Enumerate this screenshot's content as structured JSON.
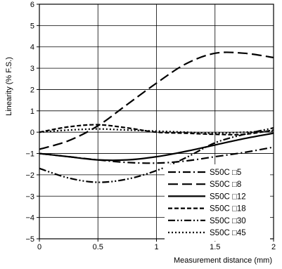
{
  "chart_data": {
    "type": "line",
    "xlabel": "Measurement distance (mm)",
    "ylabel": "Linearity (% F.S.)",
    "xlim": [
      0,
      2
    ],
    "ylim": [
      -5,
      6
    ],
    "x_ticks": [
      "0",
      "0.5",
      "1",
      "1.5",
      "2"
    ],
    "y_ticks": [
      "6",
      "5",
      "4",
      "3",
      "2",
      "1",
      "0",
      "−1",
      "−2",
      "−3",
      "−4",
      "−5"
    ],
    "grid": true,
    "legend_position": "bottom-right",
    "series": [
      {
        "name": "S50C □5",
        "dash": "dash-dot",
        "x": [
          0,
          0.25,
          0.5,
          0.75,
          1.0,
          1.25,
          1.5,
          1.75,
          2.0
        ],
        "y": [
          -1.0,
          -1.15,
          -1.3,
          -1.42,
          -1.45,
          -1.35,
          -1.15,
          -0.95,
          -0.7
        ]
      },
      {
        "name": "S50C □8",
        "dash": "long-dash",
        "x": [
          0,
          0.25,
          0.5,
          0.75,
          1.0,
          1.25,
          1.5,
          1.75,
          2.0
        ],
        "y": [
          -0.8,
          -0.4,
          0.3,
          1.3,
          2.3,
          3.2,
          3.7,
          3.7,
          3.5
        ]
      },
      {
        "name": "S50C □12",
        "dash": "solid",
        "x": [
          0,
          0.25,
          0.5,
          0.75,
          1.0,
          1.25,
          1.5,
          1.75,
          2.0
        ],
        "y": [
          -1.0,
          -1.15,
          -1.3,
          -1.3,
          -1.15,
          -0.9,
          -0.6,
          -0.3,
          -0.05
        ]
      },
      {
        "name": "S50C □18",
        "dash": "short-dash",
        "x": [
          0,
          0.25,
          0.5,
          0.75,
          1.0,
          1.25,
          1.5,
          1.75,
          2.0
        ],
        "y": [
          0.0,
          0.25,
          0.35,
          0.2,
          0.0,
          -0.05,
          -0.1,
          -0.1,
          0.1
        ]
      },
      {
        "name": "S50C □30",
        "dash": "dash-dot-dot",
        "x": [
          0,
          0.25,
          0.5,
          0.75,
          1.0,
          1.25,
          1.5,
          1.75,
          2.0
        ],
        "y": [
          -1.7,
          -2.15,
          -2.35,
          -2.2,
          -1.8,
          -1.2,
          -0.5,
          -0.1,
          0.2
        ]
      },
      {
        "name": "S50C □45",
        "dash": "dotted",
        "x": [
          0,
          0.25,
          0.5,
          0.75,
          1.0,
          1.25,
          1.5,
          1.75,
          2.0
        ],
        "y": [
          0.0,
          0.1,
          0.15,
          0.1,
          0.05,
          0.0,
          -0.05,
          0.0,
          0.05
        ]
      }
    ]
  }
}
